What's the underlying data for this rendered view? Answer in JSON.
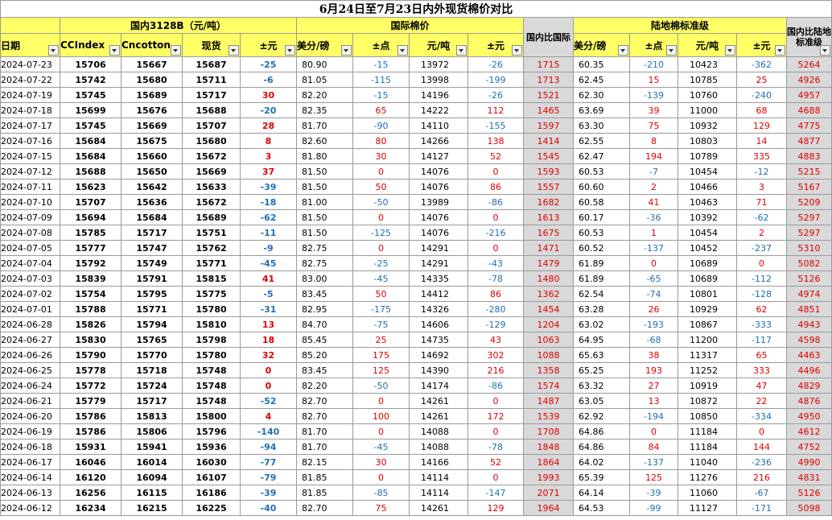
{
  "title": "6月24日至7月23日内外现货棉价对比",
  "groups": {
    "domestic": "国内3128B（元/吨）",
    "intl": "国际棉价",
    "land": "陆地棉标准级"
  },
  "headers": {
    "date": "日期",
    "cc_index": "CCIndex",
    "cncotton": "Cncotton",
    "spot": "现货",
    "diff_yuan": "±元",
    "usc_lb": "美分/磅",
    "diff_pt": "±点",
    "yuan_ton": "元/吨",
    "diff_yuan2": "±元",
    "ratio_intl": "国内比国际",
    "land_usc_lb": "美分/磅",
    "land_diff_pt": "±点",
    "land_yuan_ton": "元/吨",
    "land_diff_yuan": "±元",
    "ratio_land": "国内比陆地标准级"
  },
  "colors": {
    "red": "#e00000",
    "blue": "#1f6fb4",
    "header_yellow": "#ffff66",
    "gray": "#d9d9d9"
  },
  "rows": [
    [
      "2024-07-23",
      "15706",
      "15667",
      "15687",
      "-25",
      "80.90",
      "-15",
      "13972",
      "-26",
      "1715",
      "60.35",
      "-210",
      "10423",
      "-362",
      "5264"
    ],
    [
      "2024-07-22",
      "15742",
      "15680",
      "15711",
      "-6",
      "81.05",
      "-115",
      "13998",
      "-199",
      "1713",
      "62.45",
      "15",
      "10785",
      "25",
      "4926"
    ],
    [
      "2024-07-19",
      "15745",
      "15689",
      "15717",
      "30",
      "82.20",
      "-15",
      "14196",
      "-26",
      "1521",
      "62.30",
      "-139",
      "10760",
      "-240",
      "4957"
    ],
    [
      "2024-07-18",
      "15699",
      "15676",
      "15688",
      "-20",
      "82.35",
      "65",
      "14222",
      "112",
      "1465",
      "63.69",
      "39",
      "11000",
      "68",
      "4688"
    ],
    [
      "2024-07-17",
      "15745",
      "15669",
      "15707",
      "28",
      "81.70",
      "-90",
      "14110",
      "-155",
      "1597",
      "63.30",
      "75",
      "10932",
      "129",
      "4775"
    ],
    [
      "2024-07-16",
      "15684",
      "15675",
      "15680",
      "8",
      "82.60",
      "80",
      "14266",
      "138",
      "1414",
      "62.55",
      "8",
      "10803",
      "14",
      "4877"
    ],
    [
      "2024-07-15",
      "15684",
      "15660",
      "15672",
      "3",
      "81.80",
      "30",
      "14127",
      "52",
      "1545",
      "62.47",
      "194",
      "10789",
      "335",
      "4883"
    ],
    [
      "2024-07-12",
      "15688",
      "15650",
      "15669",
      "37",
      "81.50",
      "0",
      "14076",
      "0",
      "1593",
      "60.53",
      "-7",
      "10454",
      "-12",
      "5215"
    ],
    [
      "2024-07-11",
      "15623",
      "15642",
      "15633",
      "-39",
      "81.50",
      "50",
      "14076",
      "86",
      "1557",
      "60.60",
      "2",
      "10466",
      "3",
      "5167"
    ],
    [
      "2024-07-10",
      "15707",
      "15636",
      "15672",
      "-18",
      "81.00",
      "-50",
      "13989",
      "-86",
      "1682",
      "60.58",
      "41",
      "10463",
      "71",
      "5209"
    ],
    [
      "2024-07-09",
      "15694",
      "15684",
      "15689",
      "-62",
      "81.50",
      "0",
      "14076",
      "0",
      "1613",
      "60.17",
      "-36",
      "10392",
      "-62",
      "5297"
    ],
    [
      "2024-07-08",
      "15785",
      "15717",
      "15751",
      "-11",
      "81.50",
      "-125",
      "14076",
      "-216",
      "1675",
      "60.53",
      "1",
      "10454",
      "2",
      "5297"
    ],
    [
      "2024-07-05",
      "15777",
      "15747",
      "15762",
      "-9",
      "82.75",
      "0",
      "14291",
      "0",
      "1471",
      "60.52",
      "-137",
      "10452",
      "-237",
      "5310"
    ],
    [
      "2024-07-04",
      "15792",
      "15749",
      "15771",
      "-45",
      "82.75",
      "-25",
      "14291",
      "-43",
      "1479",
      "61.89",
      "0",
      "10689",
      "0",
      "5082"
    ],
    [
      "2024-07-03",
      "15839",
      "15791",
      "15815",
      "41",
      "83.00",
      "-45",
      "14335",
      "-78",
      "1480",
      "61.89",
      "-65",
      "10689",
      "-112",
      "5126"
    ],
    [
      "2024-07-02",
      "15754",
      "15795",
      "15775",
      "-5",
      "83.45",
      "50",
      "14412",
      "86",
      "1362",
      "62.54",
      "-74",
      "10801",
      "-128",
      "4974"
    ],
    [
      "2024-07-01",
      "15788",
      "15771",
      "15780",
      "-31",
      "82.95",
      "-175",
      "14326",
      "-280",
      "1454",
      "63.28",
      "26",
      "10929",
      "62",
      "4851"
    ],
    [
      "2024-06-28",
      "15826",
      "15794",
      "15810",
      "13",
      "84.70",
      "-75",
      "14606",
      "-129",
      "1204",
      "63.02",
      "-193",
      "10867",
      "-333",
      "4943"
    ],
    [
      "2024-06-27",
      "15830",
      "15765",
      "15798",
      "18",
      "85.45",
      "25",
      "14735",
      "43",
      "1063",
      "64.95",
      "-68",
      "11200",
      "-117",
      "4598"
    ],
    [
      "2024-06-26",
      "15790",
      "15770",
      "15780",
      "32",
      "85.20",
      "175",
      "14692",
      "302",
      "1088",
      "65.63",
      "38",
      "11317",
      "65",
      "4463"
    ],
    [
      "2024-06-25",
      "15778",
      "15718",
      "15748",
      "0",
      "83.45",
      "125",
      "14390",
      "216",
      "1358",
      "65.25",
      "193",
      "11252",
      "333",
      "4496"
    ],
    [
      "2024-06-24",
      "15772",
      "15724",
      "15748",
      "0",
      "82.20",
      "-50",
      "14174",
      "-86",
      "1574",
      "63.32",
      "27",
      "10919",
      "47",
      "4829"
    ],
    [
      "2024-06-21",
      "15779",
      "15717",
      "15748",
      "-52",
      "82.70",
      "0",
      "14261",
      "0",
      "1487",
      "63.05",
      "13",
      "10872",
      "22",
      "4876"
    ],
    [
      "2024-06-20",
      "15786",
      "15813",
      "15800",
      "4",
      "82.70",
      "100",
      "14261",
      "172",
      "1539",
      "62.92",
      "-194",
      "10850",
      "-334",
      "4950"
    ],
    [
      "2024-06-19",
      "15786",
      "15806",
      "15796",
      "-140",
      "81.70",
      "0",
      "14088",
      "0",
      "1708",
      "64.86",
      "0",
      "11184",
      "0",
      "4612"
    ],
    [
      "2024-06-18",
      "15931",
      "15941",
      "15936",
      "-94",
      "81.70",
      "-45",
      "14088",
      "-78",
      "1848",
      "64.86",
      "84",
      "11184",
      "144",
      "4752"
    ],
    [
      "2024-06-17",
      "16046",
      "16014",
      "16030",
      "-77",
      "82.15",
      "30",
      "14166",
      "52",
      "1864",
      "64.02",
      "-137",
      "11040",
      "-236",
      "4990"
    ],
    [
      "2024-06-14",
      "16120",
      "16094",
      "16107",
      "-79",
      "81.85",
      "0",
      "14114",
      "0",
      "1993",
      "65.39",
      "125",
      "11276",
      "216",
      "4831"
    ],
    [
      "2024-06-13",
      "16256",
      "16115",
      "16186",
      "-39",
      "81.85",
      "-85",
      "14114",
      "-147",
      "2071",
      "64.14",
      "-39",
      "11060",
      "-67",
      "5126"
    ],
    [
      "2024-06-12",
      "16234",
      "16215",
      "16225",
      "-40",
      "82.70",
      "75",
      "14261",
      "129",
      "1964",
      "64.53",
      "-99",
      "11127",
      "-171",
      "5098"
    ]
  ]
}
